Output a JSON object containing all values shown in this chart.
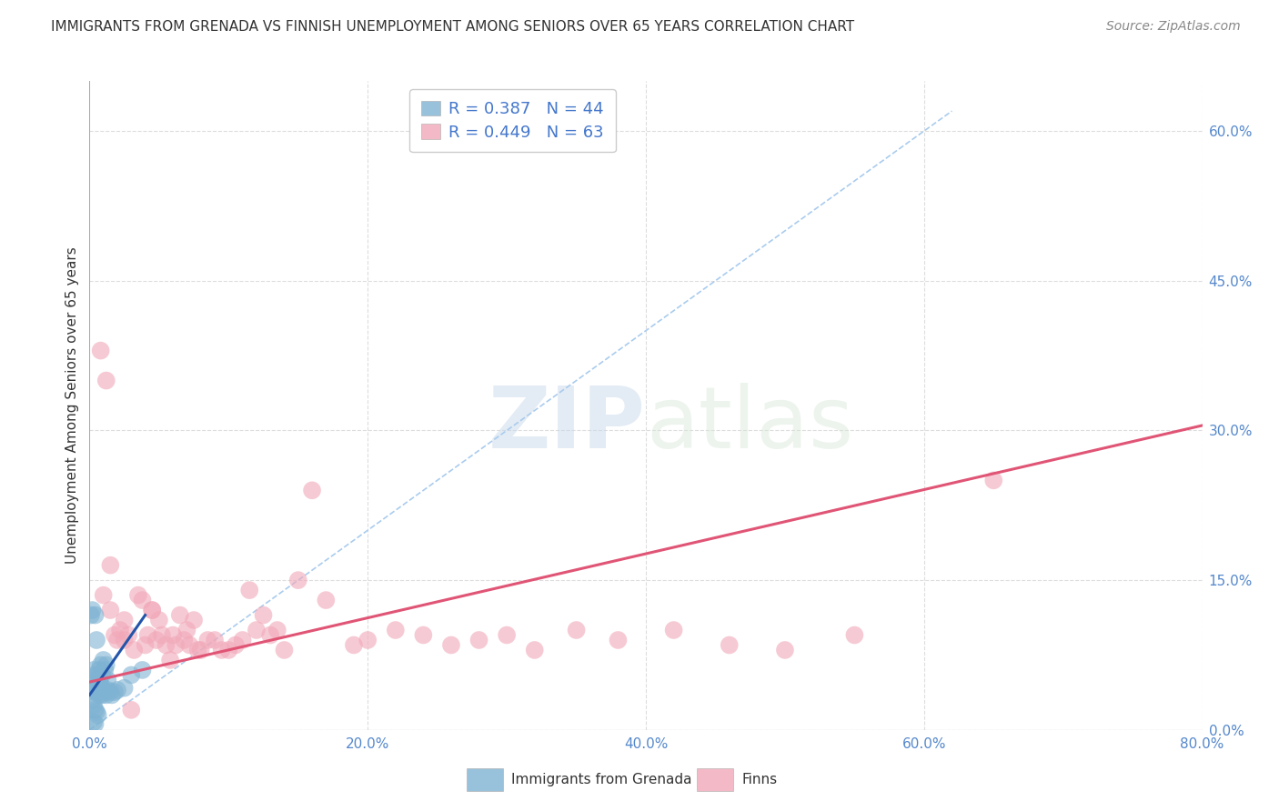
{
  "title": "IMMIGRANTS FROM GRENADA VS FINNISH UNEMPLOYMENT AMONG SENIORS OVER 65 YEARS CORRELATION CHART",
  "source": "Source: ZipAtlas.com",
  "ylabel": "Unemployment Among Seniors over 65 years",
  "xlim": [
    0.0,
    0.8
  ],
  "ylim": [
    0.0,
    0.65
  ],
  "xticks": [
    0.0,
    0.2,
    0.4,
    0.6,
    0.8
  ],
  "xticklabels": [
    "0.0%",
    "20.0%",
    "40.0%",
    "60.0%",
    "80.0%"
  ],
  "yticks_right": [
    0.0,
    0.15,
    0.3,
    0.45,
    0.6
  ],
  "yticklabels_right": [
    "0.0%",
    "15.0%",
    "30.0%",
    "45.0%",
    "60.0%"
  ],
  "watermark_zip": "ZIP",
  "watermark_atlas": "atlas",
  "legend_blue_r": "0.387",
  "legend_blue_n": "44",
  "legend_pink_r": "0.449",
  "legend_pink_n": "63",
  "blue_color": "#7FB3D3",
  "pink_color": "#F1A8B8",
  "blue_line_color": "#2255AA",
  "pink_line_color": "#E05575",
  "dashed_line_color": "#AACCEE",
  "blue_scatter_x": [
    0.004,
    0.005,
    0.006,
    0.007,
    0.008,
    0.009,
    0.01,
    0.011,
    0.012,
    0.013,
    0.003,
    0.004,
    0.005,
    0.006,
    0.007,
    0.008,
    0.002,
    0.003,
    0.004,
    0.005,
    0.006,
    0.007,
    0.008,
    0.009,
    0.01,
    0.011,
    0.012,
    0.013,
    0.015,
    0.016,
    0.018,
    0.02,
    0.025,
    0.03,
    0.002,
    0.003,
    0.004,
    0.005,
    0.006,
    0.001,
    0.002,
    0.038,
    0.003,
    0.004
  ],
  "blue_scatter_y": [
    0.115,
    0.09,
    0.055,
    0.06,
    0.065,
    0.055,
    0.07,
    0.06,
    0.065,
    0.05,
    0.06,
    0.055,
    0.05,
    0.045,
    0.05,
    0.045,
    0.04,
    0.04,
    0.038,
    0.042,
    0.038,
    0.035,
    0.04,
    0.035,
    0.04,
    0.038,
    0.035,
    0.04,
    0.038,
    0.035,
    0.038,
    0.04,
    0.042,
    0.055,
    0.03,
    0.025,
    0.02,
    0.018,
    0.015,
    0.115,
    0.12,
    0.06,
    0.008,
    0.006
  ],
  "pink_scatter_x": [
    0.01,
    0.015,
    0.018,
    0.022,
    0.025,
    0.028,
    0.032,
    0.035,
    0.038,
    0.042,
    0.045,
    0.048,
    0.052,
    0.058,
    0.062,
    0.065,
    0.068,
    0.072,
    0.078,
    0.085,
    0.09,
    0.095,
    0.105,
    0.11,
    0.115,
    0.125,
    0.13,
    0.135,
    0.15,
    0.16,
    0.17,
    0.19,
    0.2,
    0.22,
    0.26,
    0.28,
    0.32,
    0.38,
    0.46,
    0.55,
    0.008,
    0.012,
    0.03,
    0.05,
    0.055,
    0.06,
    0.07,
    0.075,
    0.1,
    0.12,
    0.14,
    0.24,
    0.3,
    0.35,
    0.42,
    0.5,
    0.65,
    0.015,
    0.02,
    0.025,
    0.04,
    0.045,
    0.08
  ],
  "pink_scatter_y": [
    0.135,
    0.12,
    0.095,
    0.1,
    0.11,
    0.095,
    0.08,
    0.135,
    0.13,
    0.095,
    0.12,
    0.09,
    0.095,
    0.07,
    0.085,
    0.115,
    0.09,
    0.085,
    0.08,
    0.09,
    0.09,
    0.08,
    0.085,
    0.09,
    0.14,
    0.115,
    0.095,
    0.1,
    0.15,
    0.24,
    0.13,
    0.085,
    0.09,
    0.1,
    0.085,
    0.09,
    0.08,
    0.09,
    0.085,
    0.095,
    0.38,
    0.35,
    0.02,
    0.11,
    0.085,
    0.095,
    0.1,
    0.11,
    0.08,
    0.1,
    0.08,
    0.095,
    0.095,
    0.1,
    0.1,
    0.08,
    0.25,
    0.165,
    0.09,
    0.09,
    0.085,
    0.12,
    0.08
  ],
  "blue_line_x": [
    0.0,
    0.04
  ],
  "blue_line_y": [
    0.035,
    0.115
  ],
  "pink_line_x": [
    0.0,
    0.8
  ],
  "pink_line_y": [
    0.048,
    0.305
  ],
  "dashed_line_x": [
    0.0,
    0.62
  ],
  "dashed_line_y": [
    0.0,
    0.62
  ],
  "background_color": "#FFFFFF",
  "grid_color": "#DDDDDD",
  "bottom_legend_label1": "Immigrants from Grenada",
  "bottom_legend_label2": "Finns"
}
